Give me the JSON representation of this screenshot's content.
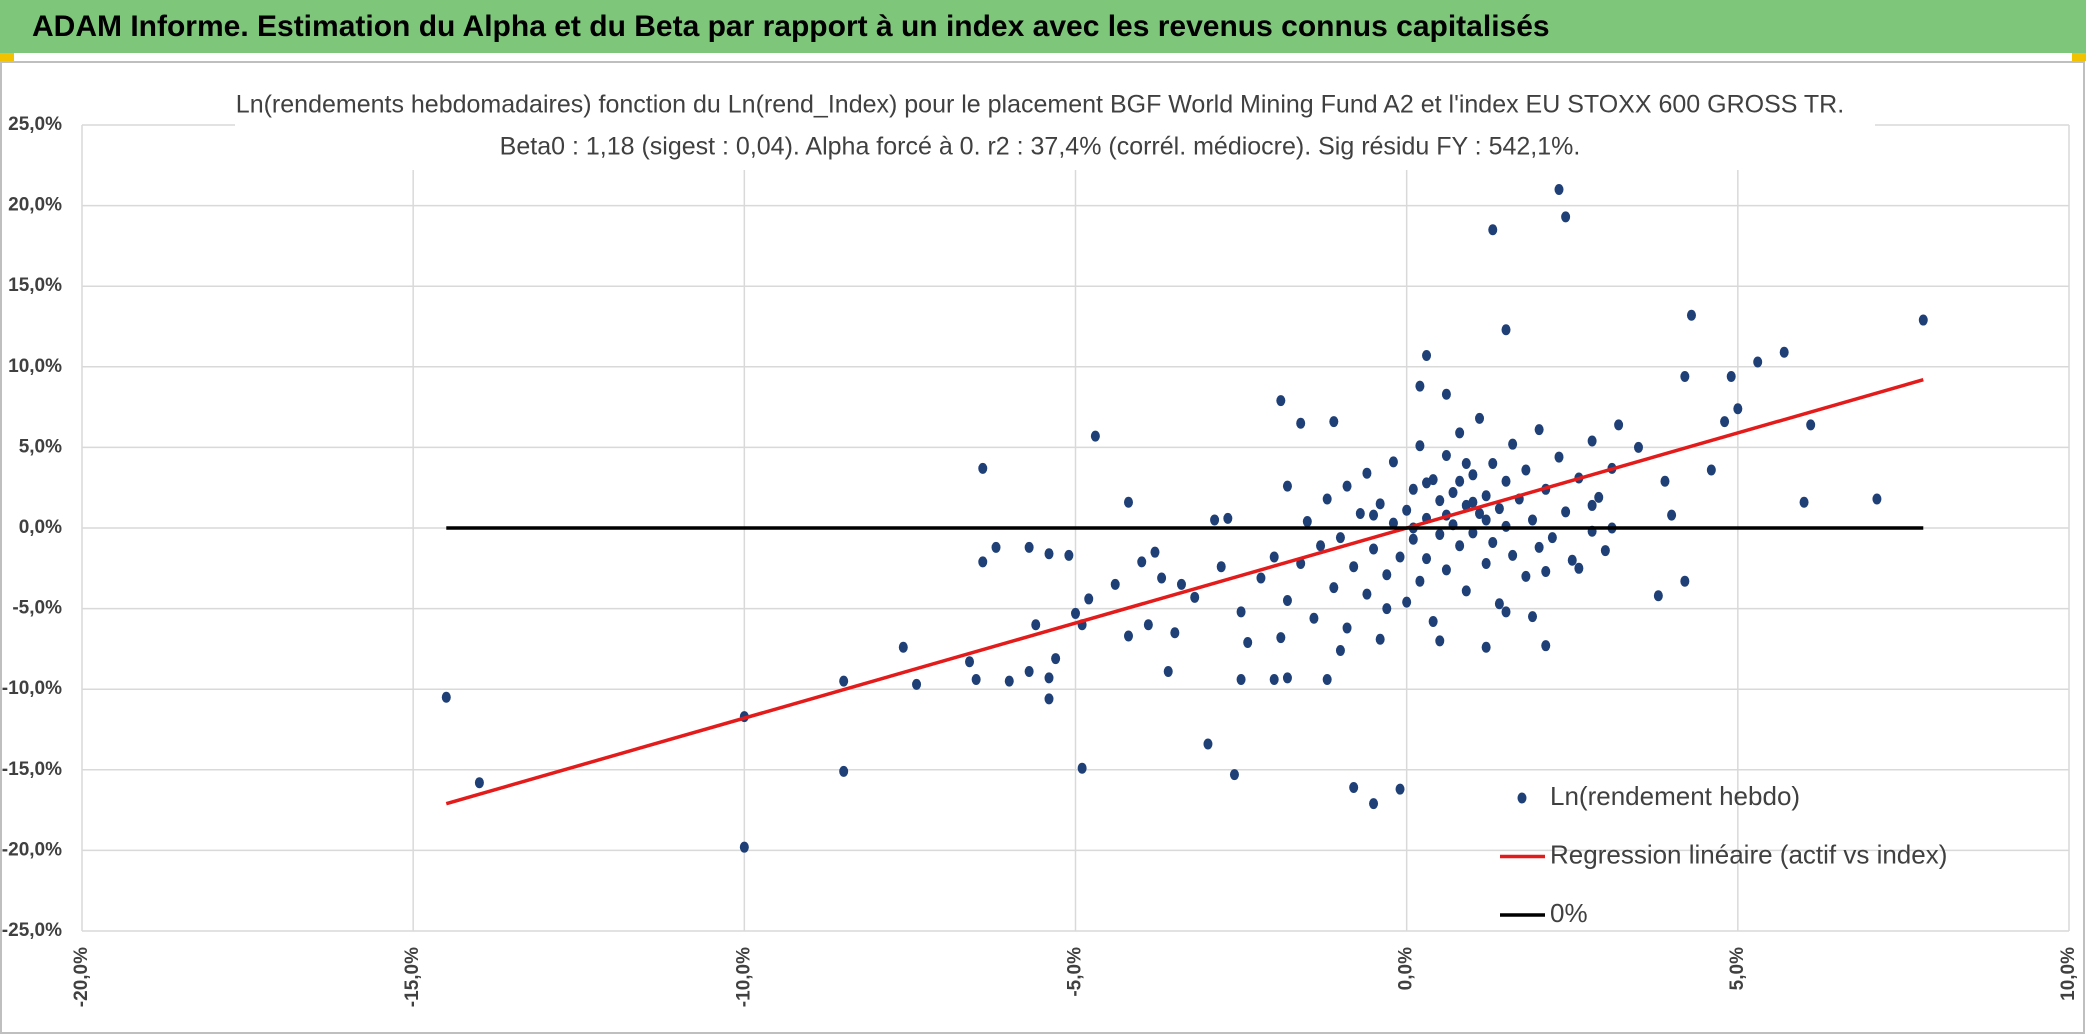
{
  "header": {
    "title": "ADAM Informe. Estimation du Alpha et du Beta par rapport à un index avec les revenus connus capitalisés"
  },
  "chart_data": {
    "type": "scatter",
    "title": "Ln(rendements hebdomadaires) fonction du Ln(rend_Index) pour le placement BGF World Mining Fund A2  et l'index EU STOXX 600 GROSS TR.",
    "subtitle": "Beta0 : 1,18 (sigest : 0,04). Alpha forcé à 0. r2 : 37,4% (corrél. médiocre). Sig résidu FY : 542,1%.",
    "xlim": [
      -20,
      10
    ],
    "xticks": [
      {
        "value": -20,
        "label": "-20,0%"
      },
      {
        "value": -15,
        "label": "-15,0%"
      },
      {
        "value": -10,
        "label": "-10,0%"
      },
      {
        "value": -5,
        "label": "-5,0%"
      },
      {
        "value": 0,
        "label": "0,0%"
      },
      {
        "value": 5,
        "label": "5,0%"
      },
      {
        "value": 10,
        "label": "10,0%"
      }
    ],
    "ylim": [
      -25,
      25
    ],
    "yticks": [
      {
        "value": -25,
        "label": "-25,0%"
      },
      {
        "value": -20,
        "label": "-20,0%"
      },
      {
        "value": -15,
        "label": "-15,0%"
      },
      {
        "value": -10,
        "label": "-10,0%"
      },
      {
        "value": -5,
        "label": "-5,0%"
      },
      {
        "value": 0,
        "label": "0,0%"
      },
      {
        "value": 5,
        "label": "5,0%"
      },
      {
        "value": 10,
        "label": "10,0%"
      },
      {
        "value": 15,
        "label": "15,0%"
      },
      {
        "value": 20,
        "label": "20,0%"
      },
      {
        "value": 25,
        "label": "25,0%"
      }
    ],
    "grid": true,
    "legend": "bottom-right",
    "series": [
      {
        "name": "Ln(rendement hebdo)",
        "color": "#1f3f77",
        "mode": "markers",
        "x": [
          -14.5,
          -14.0,
          -10.0,
          -10.0,
          -8.5,
          -8.5,
          -7.6,
          -7.4,
          -6.6,
          -6.5,
          -6.4,
          -6.4,
          -6.0,
          -6.2,
          -5.7,
          -5.4,
          -5.4,
          -5.6,
          -5.3,
          -5.7,
          -5.4,
          -5.1,
          -5.0,
          -4.9,
          -4.9,
          -4.7,
          -4.8,
          -4.2,
          -4.4,
          -4.2,
          -4.0,
          -3.9,
          -3.6,
          -3.8,
          -3.7,
          -3.4,
          -3.0,
          -2.9,
          -2.7,
          -2.6,
          -2.5,
          -2.0,
          -1.9,
          -1.8,
          -1.6,
          -1.1,
          -1.8,
          -1.2,
          -0.8,
          -0.5,
          -0.1,
          0.3,
          0.2,
          0.6,
          1.3,
          1.5,
          2.3,
          2.4,
          2.1,
          1.5,
          1.2,
          4.3,
          4.2,
          4.2,
          3.8,
          4.9,
          5.0,
          4.8,
          5.3,
          5.7,
          6.1,
          6.0,
          7.1,
          7.8,
          4.6,
          4.0,
          3.9,
          3.5,
          3.2,
          3.1,
          3.1,
          2.8,
          2.6,
          2.1,
          2.8,
          -2.2,
          -2.0,
          -1.8,
          -1.6,
          -1.5,
          -1.4,
          -1.3,
          -1.2,
          -1.1,
          -1.0,
          -0.9,
          -0.9,
          -0.8,
          -0.7,
          -0.6,
          -0.6,
          -0.5,
          -0.4,
          -0.4,
          -0.3,
          -0.2,
          -0.2,
          -0.1,
          0.0,
          0.0,
          0.1,
          0.1,
          0.2,
          0.2,
          0.3,
          0.3,
          0.4,
          0.4,
          0.5,
          0.5,
          0.6,
          0.6,
          0.7,
          0.7,
          0.8,
          0.8,
          0.9,
          0.9,
          1.0,
          1.0,
          1.1,
          1.1,
          1.2,
          1.2,
          1.3,
          1.3,
          1.4,
          1.4,
          1.5,
          1.5,
          1.6,
          1.6,
          1.7,
          1.8,
          1.8,
          1.9,
          2.0,
          2.0,
          2.1,
          2.2,
          2.3,
          2.4,
          2.5,
          2.6,
          2.8,
          2.9,
          3.0,
          -2.5,
          -2.8,
          -3.2,
          -3.5,
          -2.4,
          -1.9,
          -1.0,
          0.5,
          1.9,
          -0.3,
          0.9,
          0.3,
          0.6,
          1.0,
          1.2,
          0.1,
          -0.5,
          0.8
        ],
        "values": [
          -10.5,
          -15.8,
          -19.8,
          -11.7,
          -15.1,
          -9.5,
          -7.4,
          -9.7,
          -8.3,
          -9.4,
          3.7,
          -2.1,
          -9.5,
          -1.2,
          -8.9,
          -10.6,
          -9.3,
          -6.0,
          -8.1,
          -1.2,
          -1.6,
          -1.7,
          -5.3,
          -14.9,
          -6.0,
          5.7,
          -4.4,
          1.6,
          -3.5,
          -6.7,
          -2.1,
          -6.0,
          -8.9,
          -1.5,
          -3.1,
          -3.5,
          -13.4,
          0.5,
          0.6,
          -15.3,
          -9.4,
          -9.4,
          7.9,
          2.6,
          6.5,
          6.6,
          -9.3,
          -9.4,
          -16.1,
          -17.1,
          -16.2,
          10.7,
          8.8,
          8.3,
          18.5,
          12.3,
          21.0,
          19.3,
          -7.3,
          -5.2,
          -7.4,
          13.2,
          9.4,
          -3.3,
          -4.2,
          9.4,
          7.4,
          6.6,
          10.3,
          10.9,
          6.4,
          1.6,
          1.8,
          12.9,
          3.6,
          0.8,
          2.9,
          5.0,
          6.4,
          3.7,
          0.0,
          -0.2,
          -2.5,
          -2.7,
          1.4,
          -3.1,
          -1.8,
          -4.5,
          -2.2,
          0.4,
          -5.6,
          -1.1,
          1.8,
          -3.7,
          -0.6,
          2.6,
          -6.2,
          -2.4,
          0.9,
          -4.1,
          3.4,
          -1.3,
          1.5,
          -6.9,
          -2.9,
          0.3,
          4.1,
          -1.8,
          1.1,
          -4.6,
          2.4,
          -0.7,
          -3.3,
          5.1,
          0.6,
          -1.9,
          3.0,
          -5.8,
          1.7,
          -0.4,
          4.5,
          -2.6,
          0.2,
          2.2,
          -1.1,
          5.9,
          1.4,
          -3.9,
          3.3,
          -0.3,
          0.9,
          6.8,
          -2.2,
          2.0,
          4.0,
          -0.9,
          1.2,
          -4.7,
          2.9,
          0.1,
          5.2,
          -1.7,
          1.8,
          -3.0,
          3.6,
          0.5,
          6.1,
          -1.2,
          2.4,
          -0.6,
          4.4,
          1.0,
          -2.0,
          3.1,
          5.4,
          1.9,
          -1.4,
          -5.2,
          -2.4,
          -4.3,
          -6.5,
          -7.1,
          -6.8,
          -7.6,
          -7.0,
          -5.5,
          -5.0,
          4.0,
          2.8,
          0.8,
          1.6,
          0.5,
          0.0,
          0.8,
          2.9
        ]
      },
      {
        "name": "Regression linéaire (actif vs index)",
        "color": "#e31b1b",
        "mode": "line",
        "x": [
          -14.5,
          7.8
        ],
        "values": [
          -17.1,
          9.2
        ]
      },
      {
        "name": "0%",
        "color": "#000000",
        "mode": "line",
        "x": [
          -14.5,
          7.8
        ],
        "values": [
          0,
          0
        ]
      }
    ]
  }
}
